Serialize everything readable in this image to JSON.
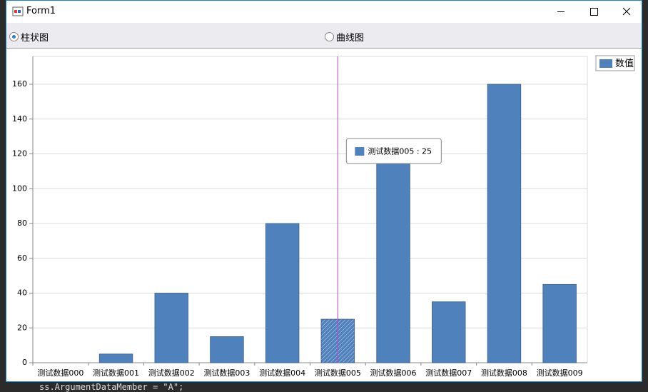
{
  "window": {
    "title": "Form1"
  },
  "options": {
    "labels": [
      "柱状图",
      "曲线图"
    ],
    "selected": 0
  },
  "background_text": "ss.ArgumentDataMember = \"A\";",
  "tooltip": {
    "text": "测试数据005 : 25",
    "category": 5
  },
  "chart_data": {
    "type": "bar",
    "categories": [
      "测试数据000",
      "测试数据001",
      "测试数据002",
      "测试数据003",
      "测试数据004",
      "测试数据005",
      "测试数据006",
      "测试数据007",
      "测试数据008",
      "测试数据009"
    ],
    "series": [
      {
        "name": "数值",
        "color": "#4f81bd",
        "values": [
          0,
          5,
          40,
          15,
          80,
          25,
          120,
          35,
          160,
          45
        ]
      }
    ],
    "ylim": [
      0,
      176
    ],
    "yticks": [
      0,
      20,
      40,
      60,
      80,
      100,
      120,
      140,
      160
    ],
    "grid": true,
    "legend": "top-right"
  }
}
